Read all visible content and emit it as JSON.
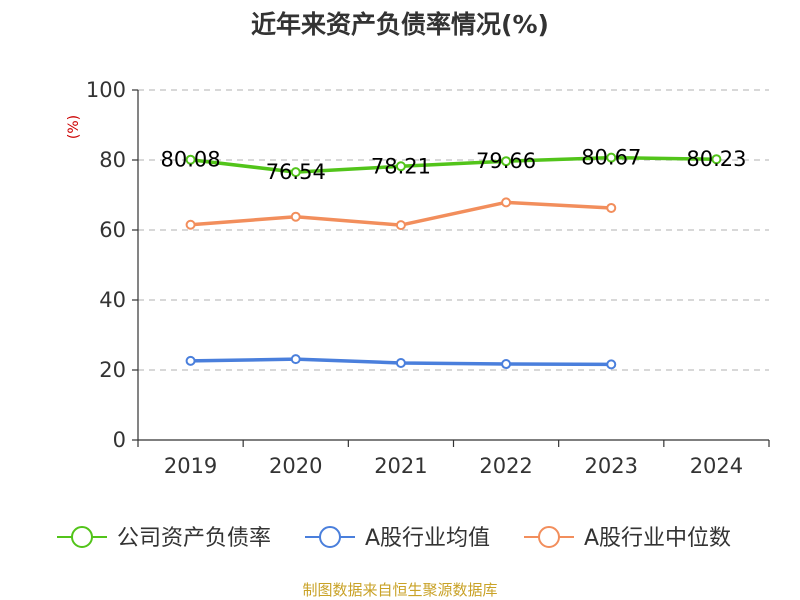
{
  "source_note": "制图数据来自恒生聚源数据库",
  "colors": {
    "company": "#52c41a",
    "industry_avg": "#4a7fdc",
    "industry_median": "#f28e5c",
    "source": "#c9a227",
    "grid": "#c0c0c0",
    "axis": "#333333"
  },
  "chart_data": {
    "type": "line",
    "title": "近年来资产负债率情况(%)",
    "xlabel": "",
    "ylabel": "(%)",
    "categories": [
      "2019",
      "2020",
      "2021",
      "2022",
      "2023",
      "2024"
    ],
    "ylim": [
      0,
      100
    ],
    "yticks": [
      0,
      20,
      40,
      60,
      80,
      100
    ],
    "grid": true,
    "legend_position": "bottom",
    "series": [
      {
        "name": "公司资产负债率",
        "color": "#52c41a",
        "values": [
          80.08,
          76.54,
          78.21,
          79.66,
          80.67,
          80.23
        ],
        "labels": [
          "80.08",
          "76.54",
          "78.21",
          "79.66",
          "80.67",
          "80.23"
        ]
      },
      {
        "name": "A股行业均值",
        "color": "#4a7fdc",
        "values": [
          22.6,
          23.1,
          22.0,
          21.7,
          21.6,
          null
        ]
      },
      {
        "name": "A股行业中位数",
        "color": "#f28e5c",
        "values": [
          61.5,
          63.8,
          61.4,
          67.9,
          66.3,
          null
        ]
      }
    ]
  }
}
